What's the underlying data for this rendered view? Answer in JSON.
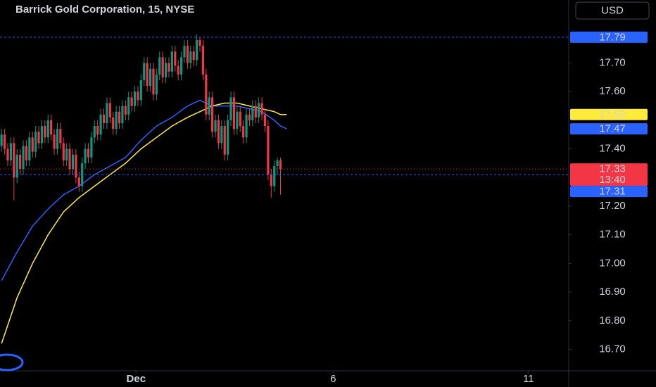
{
  "chart_data": {
    "type": "candlestick",
    "title": "Barrick Gold Corporation, 15, NYSE",
    "currency": "USD",
    "up_color": "#089981",
    "down_color": "#f23645",
    "xlim": [
      -0.5,
      183
    ],
    "xticks": [
      {
        "value": 43.4,
        "label": "Dec"
      },
      {
        "value": 107,
        "label": "6"
      },
      {
        "value": 170,
        "label": "11"
      }
    ],
    "ylim": [
      16.625,
      17.92
    ],
    "yticks": [
      {
        "value": 17.7,
        "label": "17.70"
      },
      {
        "value": 17.6,
        "label": "17.60"
      },
      {
        "value": 17.4,
        "label": "17.40"
      },
      {
        "value": 17.2,
        "label": "17.20"
      },
      {
        "value": 17.1,
        "label": "17.10"
      },
      {
        "value": 17.0,
        "label": "17.00"
      },
      {
        "value": 16.9,
        "label": "16.90"
      },
      {
        "value": 16.8,
        "label": "16.80"
      },
      {
        "value": 16.7,
        "label": "16.70"
      }
    ],
    "ohlc": [
      [
        17.41,
        17.47,
        17.39,
        17.45
      ],
      [
        17.45,
        17.47,
        17.38,
        17.4
      ],
      [
        17.4,
        17.42,
        17.34,
        17.36
      ],
      [
        17.36,
        17.44,
        17.34,
        17.42
      ],
      [
        17.42,
        17.44,
        17.22,
        17.3
      ],
      [
        17.3,
        17.4,
        17.28,
        17.38
      ],
      [
        17.38,
        17.4,
        17.31,
        17.33
      ],
      [
        17.33,
        17.43,
        17.31,
        17.41
      ],
      [
        17.41,
        17.43,
        17.34,
        17.36
      ],
      [
        17.36,
        17.46,
        17.34,
        17.44
      ],
      [
        17.44,
        17.46,
        17.37,
        17.39
      ],
      [
        17.39,
        17.48,
        17.37,
        17.46
      ],
      [
        17.46,
        17.48,
        17.4,
        17.42
      ],
      [
        17.42,
        17.5,
        17.4,
        17.48
      ],
      [
        17.48,
        17.5,
        17.42,
        17.44
      ],
      [
        17.44,
        17.52,
        17.42,
        17.5
      ],
      [
        17.5,
        17.52,
        17.43,
        17.45
      ],
      [
        17.45,
        17.47,
        17.38,
        17.4
      ],
      [
        17.4,
        17.49,
        17.38,
        17.47
      ],
      [
        17.47,
        17.49,
        17.4,
        17.42
      ],
      [
        17.42,
        17.44,
        17.34,
        17.36
      ],
      [
        17.36,
        17.42,
        17.34,
        17.4
      ],
      [
        17.4,
        17.42,
        17.31,
        17.33
      ],
      [
        17.33,
        17.4,
        17.31,
        17.38
      ],
      [
        17.38,
        17.4,
        17.28,
        17.3
      ],
      [
        17.3,
        17.32,
        17.25,
        17.27
      ],
      [
        17.27,
        17.37,
        17.25,
        17.35
      ],
      [
        17.35,
        17.42,
        17.33,
        17.4
      ],
      [
        17.4,
        17.42,
        17.35,
        17.37
      ],
      [
        17.37,
        17.46,
        17.35,
        17.44
      ],
      [
        17.44,
        17.5,
        17.42,
        17.48
      ],
      [
        17.48,
        17.5,
        17.43,
        17.45
      ],
      [
        17.45,
        17.54,
        17.43,
        17.52
      ],
      [
        17.52,
        17.54,
        17.47,
        17.49
      ],
      [
        17.49,
        17.58,
        17.47,
        17.56
      ],
      [
        17.56,
        17.58,
        17.49,
        17.51
      ],
      [
        17.51,
        17.53,
        17.45,
        17.47
      ],
      [
        17.47,
        17.55,
        17.45,
        17.53
      ],
      [
        17.53,
        17.55,
        17.47,
        17.49
      ],
      [
        17.49,
        17.57,
        17.47,
        17.55
      ],
      [
        17.55,
        17.57,
        17.5,
        17.52
      ],
      [
        17.52,
        17.6,
        17.5,
        17.58
      ],
      [
        17.58,
        17.6,
        17.53,
        17.55
      ],
      [
        17.55,
        17.62,
        17.53,
        17.6
      ],
      [
        17.6,
        17.62,
        17.55,
        17.57
      ],
      [
        17.57,
        17.66,
        17.55,
        17.64
      ],
      [
        17.64,
        17.72,
        17.62,
        17.7
      ],
      [
        17.7,
        17.72,
        17.6,
        17.62
      ],
      [
        17.62,
        17.7,
        17.6,
        17.68
      ],
      [
        17.68,
        17.7,
        17.57,
        17.59
      ],
      [
        17.59,
        17.68,
        17.57,
        17.66
      ],
      [
        17.66,
        17.74,
        17.64,
        17.72
      ],
      [
        17.72,
        17.74,
        17.63,
        17.65
      ],
      [
        17.65,
        17.72,
        17.63,
        17.7
      ],
      [
        17.7,
        17.72,
        17.65,
        17.67
      ],
      [
        17.67,
        17.76,
        17.65,
        17.74
      ],
      [
        17.74,
        17.76,
        17.67,
        17.69
      ],
      [
        17.69,
        17.71,
        17.64,
        17.66
      ],
      [
        17.66,
        17.74,
        17.64,
        17.72
      ],
      [
        17.72,
        17.78,
        17.7,
        17.76
      ],
      [
        17.76,
        17.78,
        17.68,
        17.7
      ],
      [
        17.7,
        17.76,
        17.68,
        17.74
      ],
      [
        17.74,
        17.76,
        17.69,
        17.71
      ],
      [
        17.71,
        17.8,
        17.69,
        17.78
      ],
      [
        17.78,
        17.79,
        17.74,
        17.76
      ],
      [
        17.76,
        17.78,
        17.64,
        17.66
      ],
      [
        17.66,
        17.68,
        17.5,
        17.52
      ],
      [
        17.52,
        17.6,
        17.5,
        17.58
      ],
      [
        17.58,
        17.6,
        17.44,
        17.46
      ],
      [
        17.46,
        17.52,
        17.44,
        17.5
      ],
      [
        17.5,
        17.52,
        17.4,
        17.42
      ],
      [
        17.42,
        17.5,
        17.4,
        17.48
      ],
      [
        17.48,
        17.5,
        17.36,
        17.38
      ],
      [
        17.38,
        17.52,
        17.36,
        17.5
      ],
      [
        17.5,
        17.6,
        17.48,
        17.58
      ],
      [
        17.58,
        17.6,
        17.45,
        17.47
      ],
      [
        17.47,
        17.55,
        17.45,
        17.53
      ],
      [
        17.53,
        17.55,
        17.46,
        17.48
      ],
      [
        17.48,
        17.5,
        17.42,
        17.44
      ],
      [
        17.44,
        17.54,
        17.42,
        17.52
      ],
      [
        17.52,
        17.54,
        17.48,
        17.5
      ],
      [
        17.5,
        17.57,
        17.48,
        17.55
      ],
      [
        17.55,
        17.57,
        17.49,
        17.51
      ],
      [
        17.51,
        17.58,
        17.49,
        17.56
      ],
      [
        17.56,
        17.58,
        17.5,
        17.52
      ],
      [
        17.52,
        17.54,
        17.46,
        17.48
      ],
      [
        17.48,
        17.5,
        17.29,
        17.31
      ],
      [
        17.31,
        17.33,
        17.23,
        17.27
      ],
      [
        17.27,
        17.36,
        17.25,
        17.34
      ],
      [
        17.34,
        17.37,
        17.31,
        17.36
      ],
      [
        17.36,
        17.37,
        17.24,
        17.33
      ]
    ],
    "lines": [
      {
        "color": "#2962ff",
        "x": [
          0,
          5,
          10,
          15,
          20,
          25,
          30,
          35,
          40,
          45,
          50,
          55,
          60,
          64,
          68,
          72,
          76,
          80,
          84,
          88,
          90,
          92
        ],
        "values": [
          16.94,
          17.04,
          17.13,
          17.19,
          17.24,
          17.27,
          17.31,
          17.34,
          17.37,
          17.43,
          17.48,
          17.51,
          17.55,
          17.57,
          17.55,
          17.55,
          17.55,
          17.54,
          17.53,
          17.5,
          17.48,
          17.47
        ]
      },
      {
        "color": "#ffeb3b",
        "x": [
          0,
          5,
          10,
          15,
          20,
          25,
          30,
          35,
          40,
          45,
          50,
          55,
          60,
          64,
          68,
          72,
          76,
          80,
          84,
          88,
          90,
          92
        ],
        "values": [
          16.72,
          16.88,
          17.0,
          17.1,
          17.18,
          17.23,
          17.27,
          17.31,
          17.35,
          17.4,
          17.44,
          17.48,
          17.51,
          17.53,
          17.55,
          17.56,
          17.56,
          17.55,
          17.54,
          17.53,
          17.52,
          17.52
        ]
      }
    ],
    "price_lines": [
      {
        "value": 17.79,
        "color": "#2962ff",
        "style": "dashed"
      },
      {
        "value": 17.33,
        "color": "#f23645",
        "style": "dotted"
      },
      {
        "value": 17.31,
        "color": "#2962ff",
        "style": "dashed"
      }
    ],
    "badges": [
      {
        "value": 17.79,
        "label": "17.79",
        "color": "#2962ff",
        "text_color": "#ffffff"
      },
      {
        "value": 17.52,
        "label": "17.52",
        "color": "#ffeb3b",
        "text_color": "#000000"
      },
      {
        "value": 17.47,
        "label": "17.47",
        "color": "#2962ff",
        "text_color": "#ffffff"
      },
      {
        "value": 17.33,
        "label": "17.33",
        "countdown": "13:40",
        "color": "#f23645",
        "text_color": "#ffffff"
      },
      {
        "value": 17.31,
        "label": "17.31",
        "color": "#2962ff",
        "text_color": "#ffffff"
      }
    ]
  }
}
